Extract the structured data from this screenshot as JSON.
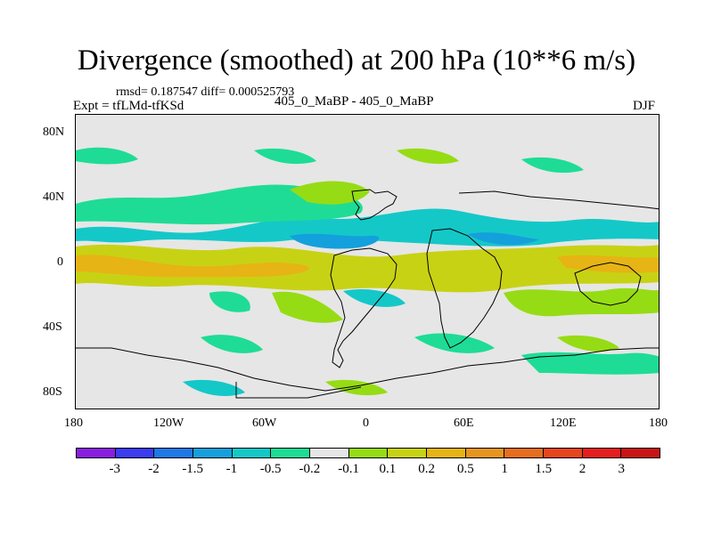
{
  "figure": {
    "title": "Divergence (smoothed) at 200 hPa (10**6 m/s)",
    "stats": "rmsd= 0.187547 diff= 0.000525793",
    "expt": "Expt = tfLMd-tfKSd",
    "center_label": "405_0_MaBP - 405_0_MaBP",
    "season": "DJF"
  },
  "map": {
    "lat_labels": [
      "80N",
      "40N",
      "0",
      "40S",
      "80S"
    ],
    "lon_labels": [
      "180",
      "120W",
      "60W",
      "0",
      "60E",
      "120E",
      "180"
    ],
    "colors": {
      "background": "#e6e6e6",
      "coast": "#000000"
    }
  },
  "colorbar": {
    "labels": [
      "-3",
      "-2",
      "-1.5",
      "-1",
      "-0.5",
      "-0.2",
      "-0.1",
      "0.1",
      "0.2",
      "0.5",
      "1",
      "1.5",
      "2",
      "3"
    ],
    "colors": [
      "#8a1ee0",
      "#3c3cf0",
      "#1e78e6",
      "#14a0dc",
      "#14c8c8",
      "#1edc96",
      "#e6e6e6",
      "#96dc14",
      "#c8d214",
      "#e6b414",
      "#e6961e",
      "#e66e1e",
      "#e6461e",
      "#e61e1e",
      "#c81414"
    ]
  }
}
